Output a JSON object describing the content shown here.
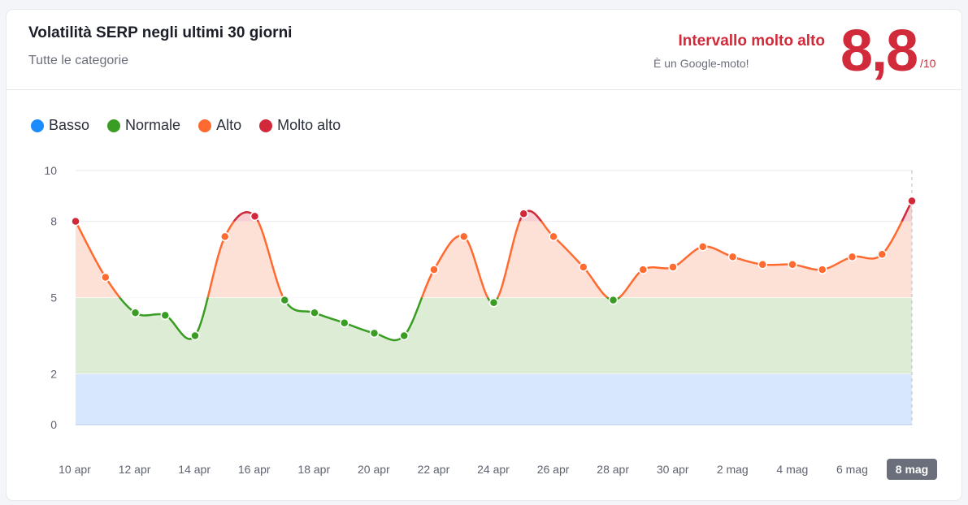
{
  "header": {
    "title": "Volatilità SERP negli ultimi 30 giorni",
    "subtitle": "Tutte le categorie",
    "range_label": "Intervallo molto alto",
    "range_sub": "È un Google-moto!",
    "score": "8,8",
    "score_den": "/10"
  },
  "legend": [
    {
      "label": "Basso",
      "color": "#1a8cff"
    },
    {
      "label": "Normale",
      "color": "#3a9d23"
    },
    {
      "label": "Alto",
      "color": "#ff6a30"
    },
    {
      "label": "Molto alto",
      "color": "#d1283a"
    }
  ],
  "colors": {
    "basso_band": "#d7e7fd",
    "normale_band": "#dcecd5",
    "alto_band": "#fde0d6",
    "molto_alto_band": "#f7d0d4",
    "normale_line": "#3a9d23",
    "alto_line": "#ff6a30",
    "molto_alto_line": "#d1283a"
  },
  "chart_data": {
    "type": "area",
    "title": "Volatilità SERP negli ultimi 30 giorni",
    "xlabel": "",
    "ylabel": "",
    "ylim": [
      0,
      10
    ],
    "yticks": [
      0,
      2,
      5,
      8,
      10
    ],
    "x_tick_labels": [
      "10 apr",
      "12 apr",
      "14 apr",
      "16 apr",
      "18 apr",
      "20 apr",
      "22 apr",
      "24 apr",
      "26 apr",
      "28 apr",
      "30 apr",
      "2 mag",
      "4 mag",
      "6 mag",
      "8 mag"
    ],
    "highlighted_x": "8 mag",
    "bands": [
      {
        "name": "Basso",
        "from": 0,
        "to": 2
      },
      {
        "name": "Normale",
        "from": 2,
        "to": 5
      },
      {
        "name": "Alto",
        "from": 5,
        "to": 8
      },
      {
        "name": "Molto alto",
        "from": 8,
        "to": 10
      }
    ],
    "series": [
      {
        "values": [
          8.0,
          5.8,
          4.4,
          4.3,
          3.5,
          7.4,
          8.2,
          4.9,
          4.4,
          4.0,
          3.6,
          3.5,
          6.1,
          7.4,
          4.8,
          8.3,
          7.4,
          6.2,
          4.9,
          6.1,
          6.2,
          7.0,
          6.6,
          6.3,
          6.3,
          6.1,
          6.6,
          6.7,
          8.8
        ]
      }
    ]
  }
}
